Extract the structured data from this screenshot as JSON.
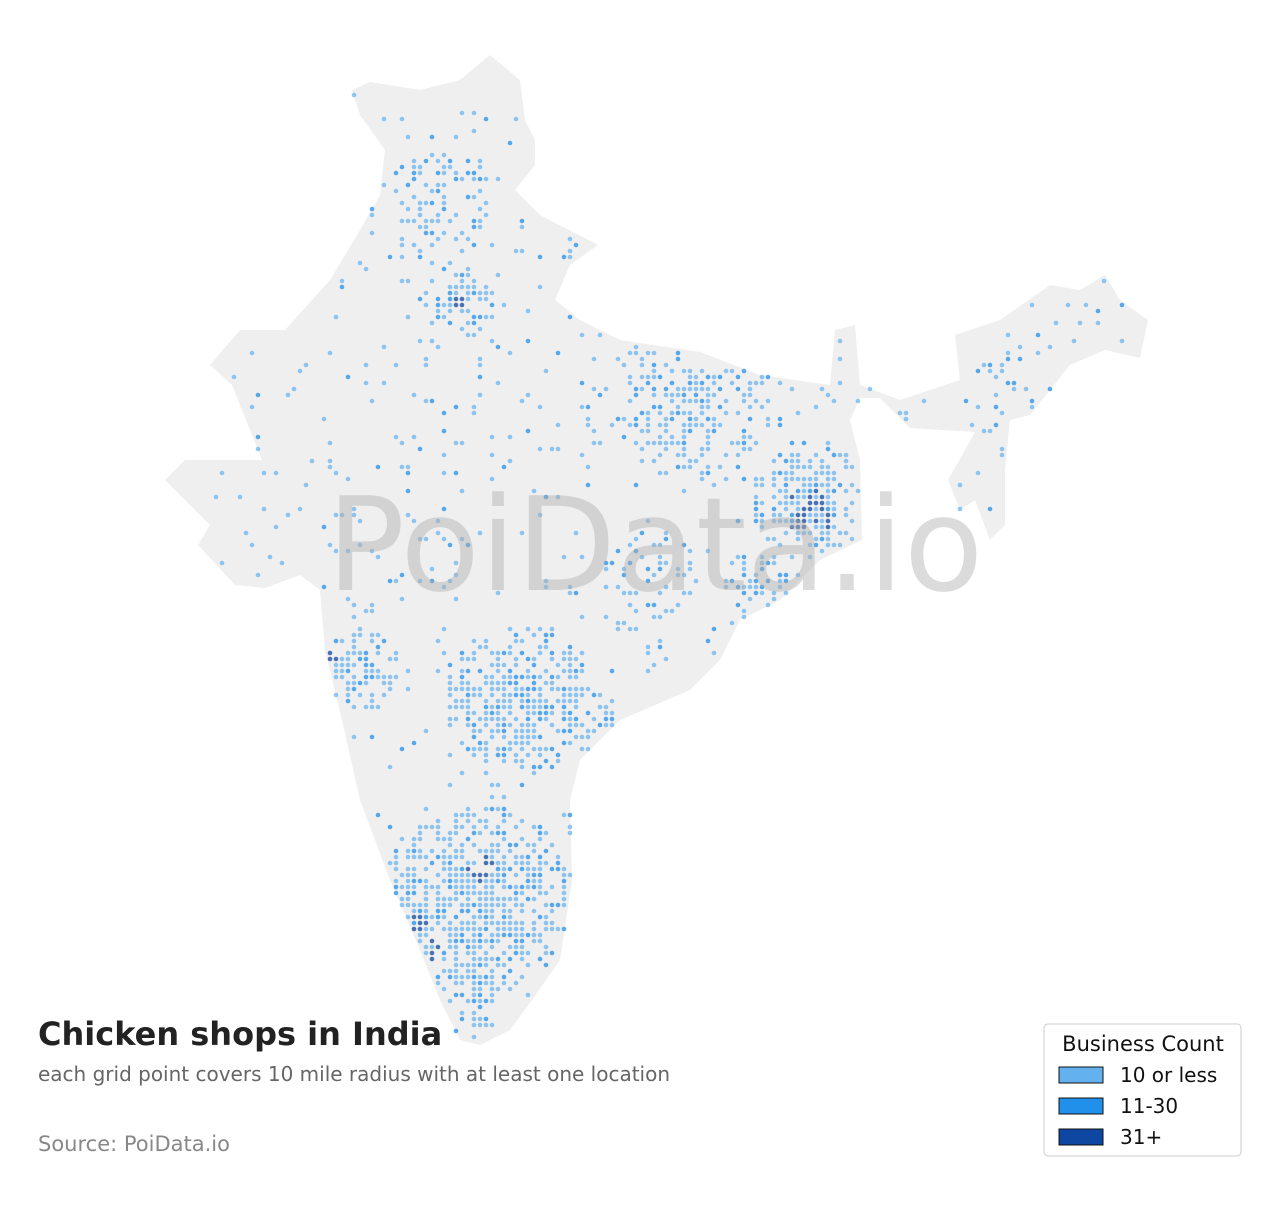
{
  "header": {
    "title": "Chicken shops in India",
    "subtitle": "each grid point covers 10 mile radius with at least one location"
  },
  "source": "Source: PoiData.io",
  "watermark": "PoiData.io",
  "legend": {
    "title": "Business Count",
    "items": [
      {
        "label": "10 or less",
        "color": "#64b1f0"
      },
      {
        "label": "11-30",
        "color": "#2090ea"
      },
      {
        "label": "31+",
        "color": "#0d47a1"
      }
    ]
  }
}
